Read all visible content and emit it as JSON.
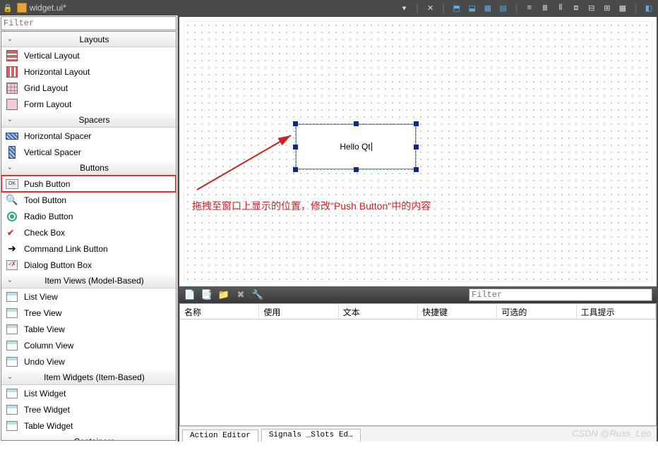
{
  "title": "widget.ui*",
  "toolbar_icons": [
    "grid-h",
    "grid-v",
    "grid",
    "form",
    "sep",
    "lay1",
    "lay2",
    "lay3",
    "lay4",
    "lay5",
    "lay6",
    "lay7",
    "sep",
    "adjust"
  ],
  "sidebar_filter_placeholder": "Filter",
  "categories": [
    {
      "title": "Layouts",
      "items": [
        {
          "label": "Vertical Layout",
          "icon": "vlayout"
        },
        {
          "label": "Horizontal Layout",
          "icon": "hlayout"
        },
        {
          "label": "Grid Layout",
          "icon": "grid"
        },
        {
          "label": "Form Layout",
          "icon": "form"
        }
      ]
    },
    {
      "title": "Spacers",
      "items": [
        {
          "label": "Horizontal Spacer",
          "icon": "hspacer"
        },
        {
          "label": "Vertical Spacer",
          "icon": "vspacer"
        }
      ]
    },
    {
      "title": "Buttons",
      "items": [
        {
          "label": "Push Button",
          "icon": "push",
          "highlight": true
        },
        {
          "label": "Tool Button",
          "icon": "tool"
        },
        {
          "label": "Radio Button",
          "icon": "radio"
        },
        {
          "label": "Check Box",
          "icon": "check"
        },
        {
          "label": "Command Link Button",
          "icon": "cmdlink"
        },
        {
          "label": "Dialog Button Box",
          "icon": "dlgbox"
        }
      ]
    },
    {
      "title": "Item Views (Model-Based)",
      "items": [
        {
          "label": "List View",
          "icon": "view"
        },
        {
          "label": "Tree View",
          "icon": "view"
        },
        {
          "label": "Table View",
          "icon": "view"
        },
        {
          "label": "Column View",
          "icon": "view"
        },
        {
          "label": "Undo View",
          "icon": "view"
        }
      ]
    },
    {
      "title": "Item Widgets (Item-Based)",
      "items": [
        {
          "label": "List Widget",
          "icon": "view"
        },
        {
          "label": "Tree Widget",
          "icon": "view"
        },
        {
          "label": "Table Widget",
          "icon": "view"
        }
      ]
    },
    {
      "title": "Containers",
      "items": []
    }
  ],
  "canvas_widget_text": "Hello Qt",
  "annotation": "拖拽至窗口上显示的位置，修改\"Push Button\"中的内容",
  "bottom_filter_placeholder": "Filter",
  "action_columns": [
    "名称",
    "使用",
    "文本",
    "快捷键",
    "可选的",
    "工具提示"
  ],
  "bottom_tabs": [
    "Action Editor",
    "Signals _Slots Ed…"
  ],
  "watermark": "CSDN @Russ_Leo",
  "colors": {
    "annotation": "#d02020",
    "handle": "#0a2a8a",
    "highlight": "#e03030"
  }
}
